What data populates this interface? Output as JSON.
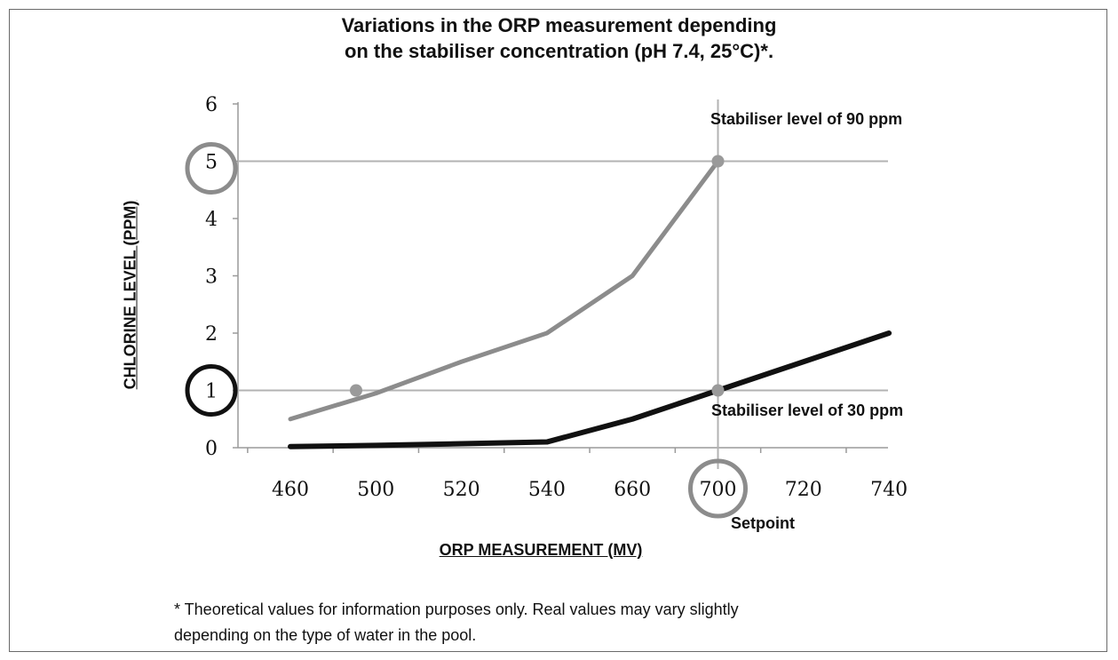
{
  "chart_data": {
    "type": "line",
    "title_lines": [
      "Variations in the ORP measurement depending",
      "on the stabiliser concentration (pH 7.4, 25°C)*."
    ],
    "xlabel": "ORP MEASUREMENT (MV)",
    "ylabel": "CHLORINE LEVEL (PPM)",
    "categories": [
      "460",
      "500",
      "520",
      "540",
      "660",
      "700",
      "720",
      "740"
    ],
    "y_ticks": [
      "0",
      "1",
      "2",
      "3",
      "4",
      "5",
      "6"
    ],
    "ylim": [
      0,
      6
    ],
    "grid": false,
    "series": [
      {
        "label": "Stabiliser level of 90 ppm",
        "color": "#8c8c8c",
        "x": [
          "460",
          "500",
          "520",
          "540",
          "660",
          "700"
        ],
        "values": [
          0.5,
          0.95,
          1.5,
          2.0,
          3.0,
          5.0
        ]
      },
      {
        "label": "Stabiliser level of 30 ppm",
        "color": "#111111",
        "x": [
          "460",
          "500",
          "520",
          "540",
          "660",
          "700",
          "720",
          "740"
        ],
        "values": [
          0.02,
          0.04,
          0.07,
          0.1,
          0.5,
          1.0,
          1.5,
          2.0
        ]
      }
    ],
    "reference_lines": {
      "y": [
        5,
        1
      ],
      "x": "700"
    },
    "annotations": {
      "setpoint": "Setpoint",
      "circled": [
        "5",
        "1",
        "700"
      ]
    },
    "footnote_lines": [
      "* Theoretical values for information purposes only. Real values may vary slightly",
      "depending on the type of water in the pool."
    ]
  }
}
